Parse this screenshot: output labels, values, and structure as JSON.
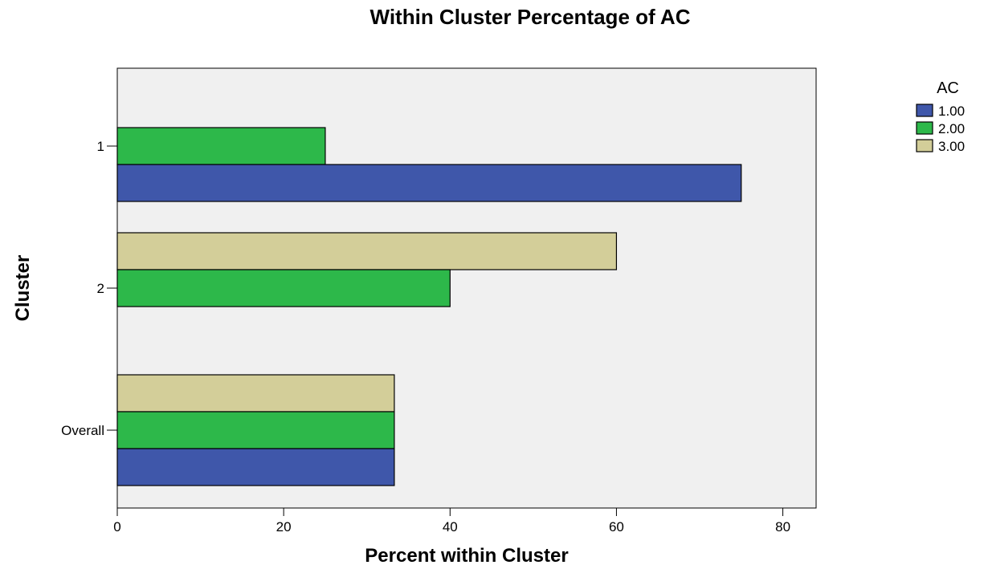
{
  "chart_data": {
    "type": "bar",
    "orientation": "horizontal",
    "title": "Within Cluster Percentage of AC",
    "xlabel": "Percent within Cluster",
    "ylabel": "Cluster",
    "xlim": [
      0,
      84
    ],
    "xticks": [
      0,
      20,
      40,
      60,
      80
    ],
    "categories": [
      "1",
      "2",
      "Overall"
    ],
    "series": [
      {
        "name": "1.00",
        "color": "#3f57aa",
        "values": [
          75,
          0,
          33.3
        ]
      },
      {
        "name": "2.00",
        "color": "#2db84a",
        "values": [
          25,
          40,
          33.3
        ]
      },
      {
        "name": "3.00",
        "color": "#d3ce99",
        "values": [
          0,
          60,
          33.3
        ]
      }
    ],
    "legend": {
      "title": "AC",
      "placement": "top-right"
    },
    "plot_background": "#f0f0f0",
    "grid": false
  }
}
